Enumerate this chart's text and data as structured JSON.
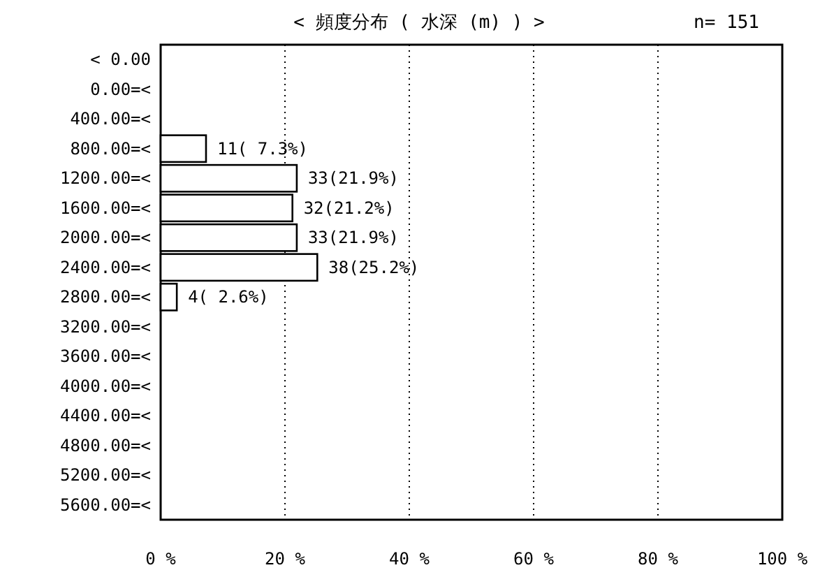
{
  "chart_data": {
    "type": "bar",
    "orientation": "horizontal",
    "title": "<  頻度分布  (  水深 (m)  ) >",
    "annotations": [
      "n= 151"
    ],
    "categories": [
      "<   0.00",
      "0.00=<",
      "400.00=<",
      "800.00=<",
      "1200.00=<",
      "1600.00=<",
      "2000.00=<",
      "2400.00=<",
      "2800.00=<",
      "3200.00=<",
      "3600.00=<",
      "4000.00=<",
      "4400.00=<",
      "4800.00=<",
      "5200.00=<",
      "5600.00=<"
    ],
    "values": [
      0,
      0,
      0,
      7.3,
      21.9,
      21.2,
      21.9,
      25.2,
      2.6,
      0,
      0,
      0,
      0,
      0,
      0,
      0
    ],
    "value_labels": [
      null,
      null,
      null,
      "11( 7.3%)",
      "33(21.9%)",
      "32(21.2%)",
      "33(21.9%)",
      "38(25.2%)",
      "4( 2.6%)",
      null,
      null,
      null,
      null,
      null,
      null,
      null
    ],
    "color": "#ffffff",
    "xlim": [
      0,
      100
    ],
    "xticks": [
      {
        "value": 0,
        "label": "0 %"
      },
      {
        "value": 20,
        "label": "20 %"
      },
      {
        "value": 40,
        "label": "40 %"
      },
      {
        "value": 60,
        "label": "60 %"
      },
      {
        "value": 80,
        "label": "80 %"
      },
      {
        "value": 100,
        "label": "100 %"
      }
    ],
    "grid": "x"
  }
}
